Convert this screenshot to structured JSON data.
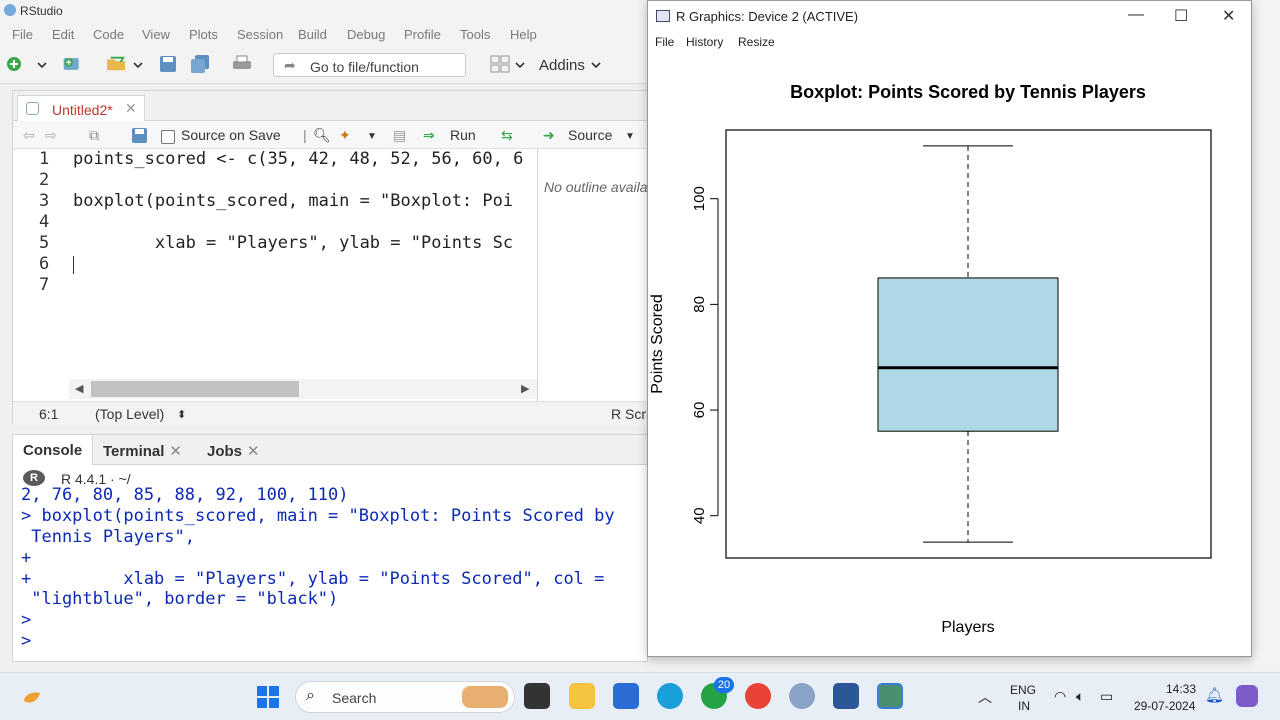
{
  "rstudio": {
    "title": "RStudio",
    "menu": [
      "File",
      "Edit",
      "Code",
      "View",
      "Plots",
      "Session",
      "Build",
      "Debug",
      "Profile",
      "Tools",
      "Help"
    ],
    "toolbar": {
      "goto_label": "Go to file/function",
      "addins_label": "Addins"
    }
  },
  "source": {
    "tab_name": "Untitled2*",
    "source_on_save": "Source on Save",
    "run_label": "Run",
    "source_label": "Source",
    "lines": [
      "points_scored <- c(35, 42, 48, 52, 56, 60, 6",
      "",
      "boxplot(points_scored, main = \"Boxplot: Poi",
      "",
      "        xlab = \"Players\", ylab = \"Points Sc",
      "",
      ""
    ],
    "outline_text": "No outline available",
    "status_pos": "6:1",
    "status_level": "(Top Level)",
    "status_type": "R Script"
  },
  "console": {
    "tabs": [
      "Console",
      "Terminal",
      "Jobs"
    ],
    "r_version": "R 4.4.1 · ~/",
    "lines": [
      "2, 76, 80, 85, 88, 92, 100, 110)",
      "> boxplot(points_scored, main = \"Boxplot: Points Scored by",
      " Tennis Players\",",
      "+",
      "+         xlab = \"Players\", ylab = \"Points Scored\", col =",
      " \"lightblue\", border = \"black\")",
      ">",
      "> "
    ]
  },
  "graphics": {
    "title": "R Graphics: Device 2 (ACTIVE)",
    "menu": [
      "File",
      "History",
      "Resize"
    ]
  },
  "chart_data": {
    "type": "boxplot",
    "title": "Boxplot: Points Scored by Tennis Players",
    "xlabel": "Players",
    "ylabel": "Points Scored",
    "ylim": [
      32,
      113
    ],
    "yticks": [
      40,
      60,
      80,
      100
    ],
    "box": {
      "min": 35,
      "q1": 56,
      "median": 68,
      "q3": 85,
      "max": 110
    },
    "fill": "#add8e6",
    "border": "#000000"
  },
  "taskbar": {
    "search": "Search",
    "badge_whatsapp": "20",
    "lang_top": "ENG",
    "lang_bottom": "IN",
    "time": "14:33",
    "date": "29-07-2024"
  }
}
